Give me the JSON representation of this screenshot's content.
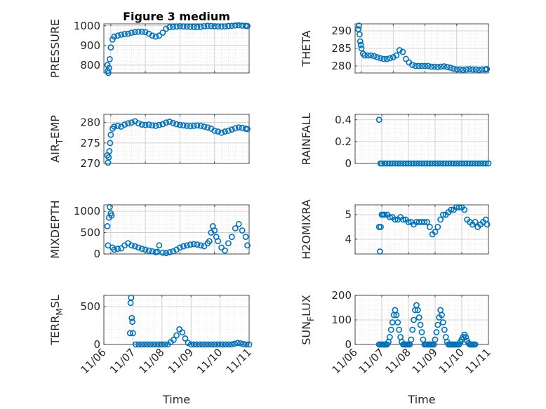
{
  "figure": {
    "title": "Figure 3 medium",
    "marker_color": "#0072BD",
    "axis_color": "#262626",
    "grid_color": "#dcdcdc"
  },
  "chart_data": [
    {
      "id": "pressure",
      "type": "scatter",
      "title": "Figure 3 medium",
      "ylabel": "PRESSURE",
      "ylabel_sub": "",
      "ylabel_tail": "",
      "xlabel": "",
      "xlim": [
        6.8,
        11.0
      ],
      "ylim": [
        760,
        1010
      ],
      "yticks": [
        800,
        900,
        1000
      ],
      "xticks": [
        7,
        8,
        9,
        10,
        11
      ],
      "xticklabels": [],
      "x": [
        6.9,
        6.91,
        6.93,
        6.95,
        6.97,
        7.0,
        7.05,
        7.1,
        7.2,
        7.3,
        7.4,
        7.5,
        7.6,
        7.7,
        7.8,
        7.9,
        8.0,
        8.1,
        8.2,
        8.3,
        8.4,
        8.5,
        8.6,
        8.7,
        8.8,
        8.9,
        9.0,
        9.1,
        9.2,
        9.3,
        9.4,
        9.5,
        9.6,
        9.7,
        9.8,
        9.9,
        10.0,
        10.1,
        10.2,
        10.3,
        10.4,
        10.5,
        10.6,
        10.7,
        10.8,
        10.9,
        10.95
      ],
      "y": [
        800,
        770,
        760,
        785,
        830,
        890,
        930,
        945,
        950,
        955,
        958,
        960,
        965,
        968,
        970,
        970,
        968,
        960,
        950,
        945,
        950,
        965,
        985,
        993,
        995,
        996,
        998,
        997,
        996,
        995,
        994,
        993,
        995,
        998,
        1000,
        999,
        998,
        997,
        996,
        997,
        999,
        1000,
        1002,
        1003,
        1001,
        1000,
        999
      ]
    },
    {
      "id": "theta",
      "type": "scatter",
      "ylabel": "THETA",
      "ylabel_sub": "",
      "ylabel_tail": "",
      "xlabel": "",
      "xlim": [
        6.8,
        11.0
      ],
      "ylim": [
        278,
        292
      ],
      "yticks": [
        280,
        285,
        290
      ],
      "xticks": [
        7,
        8,
        9,
        10,
        11
      ],
      "xticklabels": [],
      "x": [
        6.9,
        6.92,
        6.94,
        6.96,
        6.98,
        7.0,
        7.05,
        7.1,
        7.2,
        7.3,
        7.4,
        7.5,
        7.6,
        7.7,
        7.8,
        7.9,
        8.0,
        8.1,
        8.2,
        8.3,
        8.4,
        8.5,
        8.6,
        8.7,
        8.8,
        8.9,
        9.0,
        9.1,
        9.2,
        9.3,
        9.4,
        9.5,
        9.6,
        9.7,
        9.8,
        9.9,
        10.0,
        10.1,
        10.2,
        10.3,
        10.4,
        10.5,
        10.6,
        10.7,
        10.8,
        10.9,
        10.95
      ],
      "y": [
        290.5,
        291.5,
        289,
        287,
        286,
        285,
        283.5,
        283,
        283,
        283,
        282.8,
        282.5,
        282.2,
        282,
        282,
        282.2,
        282.5,
        283,
        284.5,
        284,
        282,
        281,
        280.3,
        280,
        280,
        280,
        280,
        280,
        279.8,
        279.8,
        279.7,
        279.8,
        279.9,
        279.7,
        279.5,
        279.2,
        279,
        279,
        278.9,
        279,
        279.1,
        279,
        279,
        278.9,
        279,
        279,
        279.1
      ]
    },
    {
      "id": "air_temp",
      "type": "scatter",
      "ylabel": "AIR",
      "ylabel_sub": "T",
      "ylabel_tail": "EMP",
      "xlabel": "",
      "xlim": [
        6.8,
        11.0
      ],
      "ylim": [
        270,
        282
      ],
      "yticks": [
        270,
        275,
        280
      ],
      "xticks": [
        7,
        8,
        9,
        10,
        11
      ],
      "xticklabels": [],
      "x": [
        6.9,
        6.92,
        6.94,
        6.96,
        6.98,
        7.0,
        7.05,
        7.1,
        7.2,
        7.3,
        7.4,
        7.5,
        7.6,
        7.7,
        7.8,
        7.9,
        8.0,
        8.1,
        8.2,
        8.3,
        8.4,
        8.5,
        8.6,
        8.7,
        8.8,
        8.9,
        9.0,
        9.1,
        9.2,
        9.3,
        9.4,
        9.5,
        9.6,
        9.7,
        9.8,
        9.9,
        10.0,
        10.1,
        10.2,
        10.3,
        10.4,
        10.5,
        10.6,
        10.7,
        10.8,
        10.9,
        10.95
      ],
      "y": [
        272,
        270.2,
        271.5,
        273,
        275,
        277,
        278.5,
        279,
        279.2,
        279,
        279.5,
        279.8,
        280,
        280.3,
        279.8,
        279.5,
        279.4,
        279.5,
        279.3,
        279.2,
        279.4,
        279.6,
        280,
        280.2,
        279.9,
        279.6,
        279.4,
        279.3,
        279.2,
        279.1,
        279.2,
        279.3,
        279.2,
        279,
        278.8,
        278.5,
        278,
        277.8,
        277.5,
        277.8,
        278,
        278.3,
        278.6,
        278.8,
        278.7,
        278.5,
        278.4
      ]
    },
    {
      "id": "rainfall",
      "type": "scatter",
      "ylabel": "RAINFALL",
      "ylabel_sub": "",
      "ylabel_tail": "",
      "xlabel": "",
      "xlim": [
        6.0,
        11.0
      ],
      "ylim": [
        0,
        0.45
      ],
      "yticks": [
        0,
        0.2,
        0.4
      ],
      "xticks": [
        6,
        7,
        8,
        9,
        10,
        11
      ],
      "xticklabels": [],
      "x": [
        6.9,
        6.95,
        7.0,
        7.1,
        7.2,
        7.3,
        7.4,
        7.5,
        7.6,
        7.7,
        7.8,
        7.9,
        8.0,
        8.1,
        8.2,
        8.3,
        8.4,
        8.5,
        8.6,
        8.7,
        8.8,
        8.9,
        9.0,
        9.1,
        9.2,
        9.3,
        9.4,
        9.5,
        9.6,
        9.7,
        9.8,
        9.9,
        10.0,
        10.1,
        10.2,
        10.3,
        10.4,
        10.5,
        10.6,
        10.7,
        10.8,
        10.9,
        11.0
      ],
      "y": [
        0.4,
        0,
        0,
        0,
        0,
        0,
        0,
        0,
        0,
        0,
        0,
        0,
        0,
        0,
        0,
        0,
        0,
        0,
        0,
        0,
        0,
        0,
        0,
        0,
        0,
        0,
        0,
        0,
        0,
        0,
        0,
        0,
        0,
        0,
        0,
        0,
        0,
        0,
        0,
        0,
        0,
        0,
        0
      ]
    },
    {
      "id": "mixdepth",
      "type": "scatter",
      "ylabel": "MIXDEPTH",
      "ylabel_sub": "",
      "ylabel_tail": "",
      "xlabel": "",
      "xlim": [
        6.8,
        11.0
      ],
      "ylim": [
        0,
        1150
      ],
      "yticks": [
        0,
        500,
        1000
      ],
      "xticks": [
        7,
        8,
        9,
        10,
        11
      ],
      "xticklabels": [],
      "x": [
        6.9,
        6.92,
        6.95,
        6.97,
        7.0,
        7.02,
        7.05,
        7.1,
        7.2,
        7.3,
        7.4,
        7.5,
        7.6,
        7.7,
        7.8,
        7.9,
        8.0,
        8.1,
        8.2,
        8.3,
        8.35,
        8.4,
        8.5,
        8.6,
        8.7,
        8.8,
        8.9,
        9.0,
        9.1,
        9.2,
        9.3,
        9.4,
        9.5,
        9.6,
        9.7,
        9.8,
        9.85,
        9.9,
        9.95,
        10.0,
        10.05,
        10.1,
        10.2,
        10.3,
        10.4,
        10.5,
        10.6,
        10.7,
        10.8,
        10.9,
        10.95
      ],
      "y": [
        650,
        200,
        850,
        1100,
        950,
        900,
        150,
        100,
        120,
        130,
        200,
        250,
        200,
        180,
        150,
        120,
        100,
        80,
        60,
        40,
        50,
        200,
        30,
        20,
        40,
        60,
        100,
        150,
        180,
        200,
        220,
        230,
        220,
        200,
        180,
        250,
        300,
        500,
        650,
        550,
        400,
        300,
        150,
        80,
        250,
        400,
        600,
        700,
        550,
        400,
        200
      ]
    },
    {
      "id": "h2omixra",
      "type": "scatter",
      "ylabel": "H2OMIXRA",
      "ylabel_sub": "",
      "ylabel_tail": "",
      "xlabel": "",
      "xlim": [
        6.0,
        11.0
      ],
      "ylim": [
        3.4,
        5.4
      ],
      "yticks": [
        4,
        5
      ],
      "xticks": [
        6,
        7,
        8,
        9,
        10,
        11
      ],
      "xticklabels": [],
      "x": [
        6.9,
        6.93,
        6.96,
        7.0,
        7.05,
        7.1,
        7.2,
        7.3,
        7.4,
        7.5,
        7.6,
        7.7,
        7.8,
        7.9,
        8.0,
        8.1,
        8.2,
        8.3,
        8.4,
        8.5,
        8.6,
        8.7,
        8.8,
        8.9,
        9.0,
        9.1,
        9.2,
        9.3,
        9.4,
        9.5,
        9.6,
        9.7,
        9.8,
        9.9,
        10.0,
        10.1,
        10.2,
        10.3,
        10.4,
        10.5,
        10.6,
        10.7,
        10.8,
        10.9,
        10.95
      ],
      "y": [
        4.5,
        3.5,
        4.5,
        5.0,
        5.0,
        5.0,
        5.0,
        4.9,
        4.9,
        4.8,
        4.8,
        4.9,
        4.8,
        4.8,
        4.7,
        4.7,
        4.6,
        4.7,
        4.7,
        4.7,
        4.7,
        4.7,
        4.5,
        4.2,
        4.3,
        4.5,
        4.8,
        5.0,
        5.0,
        5.1,
        5.2,
        5.2,
        5.3,
        5.3,
        5.3,
        5.2,
        4.8,
        4.7,
        4.6,
        4.7,
        4.5,
        4.6,
        4.7,
        4.8,
        4.6
      ]
    },
    {
      "id": "terr_msl",
      "type": "scatter",
      "ylabel": "TERR",
      "ylabel_sub": "M",
      "ylabel_tail": "SL",
      "xlabel": "Time",
      "xlim": [
        6.0,
        11.0
      ],
      "ylim": [
        0,
        650
      ],
      "yticks": [
        0,
        500
      ],
      "xticks": [
        6,
        7,
        8,
        9,
        10,
        11
      ],
      "xticklabels": [
        "11/06",
        "11/07",
        "11/08",
        "11/09",
        "11/10",
        "11/11"
      ],
      "x": [
        6.9,
        6.92,
        6.94,
        6.96,
        6.98,
        7.0,
        7.1,
        7.2,
        7.3,
        7.4,
        7.5,
        7.6,
        7.7,
        7.8,
        7.9,
        8.0,
        8.1,
        8.2,
        8.3,
        8.4,
        8.5,
        8.6,
        8.7,
        8.8,
        8.9,
        9.0,
        9.1,
        9.2,
        9.3,
        9.4,
        9.5,
        9.6,
        9.7,
        9.8,
        9.9,
        10.0,
        10.1,
        10.2,
        10.3,
        10.4,
        10.5,
        10.6,
        10.7,
        10.8,
        10.9,
        11.0
      ],
      "y": [
        150,
        550,
        620,
        350,
        300,
        150,
        0,
        0,
        0,
        0,
        0,
        0,
        0,
        0,
        0,
        0,
        0,
        0,
        30,
        60,
        120,
        200,
        160,
        80,
        20,
        0,
        0,
        0,
        0,
        0,
        0,
        0,
        0,
        0,
        0,
        0,
        0,
        0,
        0,
        0,
        10,
        20,
        15,
        5,
        0,
        0
      ]
    },
    {
      "id": "sun_flux",
      "type": "scatter",
      "ylabel": "SUN",
      "ylabel_sub": "F",
      "ylabel_tail": "LUX",
      "xlabel": "Time",
      "xlim": [
        6.0,
        11.0
      ],
      "ylim": [
        0,
        200
      ],
      "yticks": [
        0,
        100,
        200
      ],
      "xticks": [
        6,
        7,
        8,
        9,
        10,
        11
      ],
      "xticklabels": [
        "11/06",
        "11/07",
        "11/08",
        "11/09",
        "11/10",
        "11/11"
      ],
      "x": [
        6.9,
        6.95,
        7.0,
        7.05,
        7.1,
        7.15,
        7.2,
        7.25,
        7.3,
        7.35,
        7.4,
        7.45,
        7.5,
        7.55,
        7.6,
        7.65,
        7.7,
        7.75,
        7.8,
        7.85,
        7.9,
        7.95,
        8.0,
        8.05,
        8.1,
        8.15,
        8.2,
        8.25,
        8.3,
        8.35,
        8.4,
        8.45,
        8.5,
        8.55,
        8.6,
        8.65,
        8.7,
        8.75,
        8.8,
        8.85,
        8.9,
        8.95,
        9.0,
        9.05,
        9.1,
        9.15,
        9.2,
        9.25,
        9.3,
        9.35,
        9.4,
        9.45,
        9.5,
        9.55,
        9.6,
        9.65,
        9.7,
        9.75,
        9.8,
        9.85,
        9.9,
        9.95,
        10.0,
        10.05,
        10.1,
        10.15,
        10.2,
        10.25,
        10.3,
        10.35,
        10.4,
        10.45,
        10.5
      ],
      "y": [
        0,
        0,
        0,
        0,
        0,
        0,
        0,
        10,
        30,
        60,
        90,
        120,
        140,
        120,
        90,
        60,
        30,
        10,
        0,
        0,
        0,
        0,
        0,
        0,
        20,
        60,
        100,
        140,
        160,
        140,
        110,
        80,
        50,
        20,
        0,
        0,
        0,
        0,
        0,
        0,
        0,
        0,
        20,
        50,
        80,
        110,
        140,
        120,
        90,
        60,
        30,
        10,
        0,
        0,
        0,
        0,
        0,
        0,
        0,
        0,
        0,
        10,
        20,
        30,
        40,
        30,
        15,
        5,
        0,
        0,
        0,
        0,
        0
      ]
    }
  ]
}
